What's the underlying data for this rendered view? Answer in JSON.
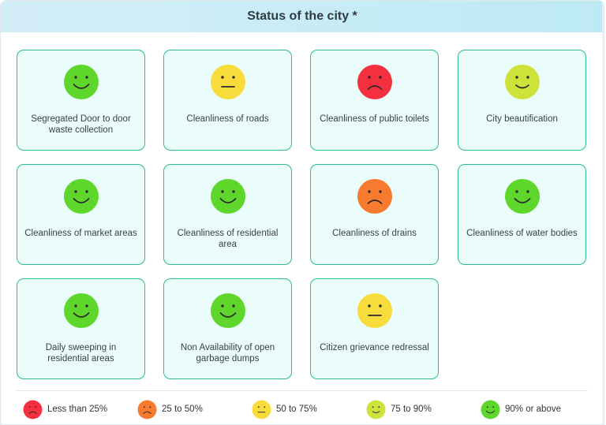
{
  "header": {
    "title": "Status of the city *"
  },
  "colors": {
    "red": "#f43040",
    "orange": "#f87a2e",
    "yellow": "#f7dc3c",
    "light_green": "#cde33a",
    "green": "#5fd62c",
    "card_border": "#2dbd86",
    "card_bg": "#eafdfb"
  },
  "cards": [
    {
      "label": "Segregated Door to door waste collection",
      "face": "happy",
      "color": "green"
    },
    {
      "label": "Cleanliness of roads",
      "face": "neutral",
      "color": "yellow"
    },
    {
      "label": "Cleanliness of public toilets",
      "face": "sad",
      "color": "red"
    },
    {
      "label": "City beautification",
      "face": "smile",
      "color": "light_green"
    },
    {
      "label": "Cleanliness of market areas",
      "face": "happy",
      "color": "green"
    },
    {
      "label": "Cleanliness of residential area",
      "face": "happy",
      "color": "green"
    },
    {
      "label": "Cleanliness of drains",
      "face": "sad",
      "color": "orange"
    },
    {
      "label": "Cleanliness of water bodies",
      "face": "happy",
      "color": "green"
    },
    {
      "label": "Daily sweeping in residential areas",
      "face": "happy",
      "color": "green"
    },
    {
      "label": "Non Availability of open garbage dumps",
      "face": "happy",
      "color": "green"
    },
    {
      "label": "Citizen grievance redressal",
      "face": "neutral",
      "color": "yellow"
    }
  ],
  "legend": [
    {
      "label": "Less than 25%",
      "face": "sad",
      "color": "red"
    },
    {
      "label": "25 to 50%",
      "face": "sad",
      "color": "orange"
    },
    {
      "label": "50 to 75%",
      "face": "neutral",
      "color": "yellow"
    },
    {
      "label": "75 to 90%",
      "face": "smile",
      "color": "light_green"
    },
    {
      "label": "90% or above",
      "face": "happy",
      "color": "green"
    }
  ]
}
